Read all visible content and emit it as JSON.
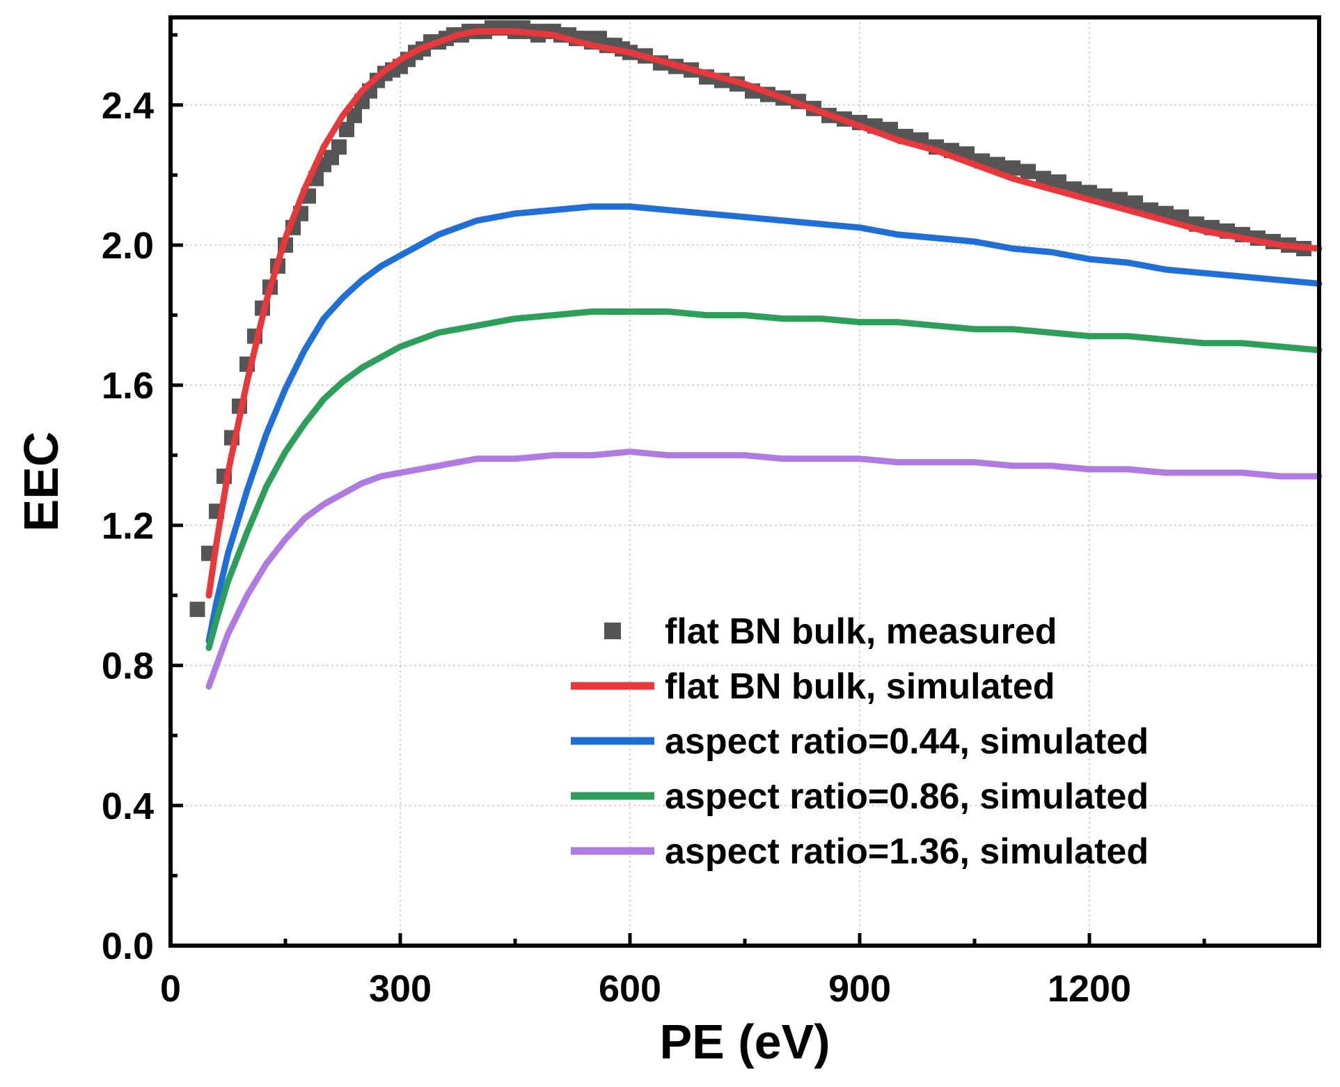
{
  "chart_data": {
    "type": "line",
    "xlabel": "PE (eV)",
    "ylabel": "EEC",
    "xlim": [
      0,
      1500
    ],
    "ylim": [
      0,
      2.65
    ],
    "xticks": [
      0,
      300,
      600,
      900,
      1200
    ],
    "xtick_labels": [
      "0",
      "300",
      "600",
      "900",
      "1200"
    ],
    "yticks": [
      0.0,
      0.4,
      0.8,
      1.2,
      1.6,
      2.0,
      2.4
    ],
    "ytick_labels": [
      "0.0",
      "0.4",
      "0.8",
      "1.2",
      "1.6",
      "2.0",
      "2.4"
    ],
    "grid": true,
    "legend_position": "bottom-right",
    "series": [
      {
        "name": "flat BN bulk, measured",
        "style": "scatter",
        "color": "#555555",
        "points": [
          [
            35,
            0.96
          ],
          [
            50,
            1.12
          ],
          [
            60,
            1.24
          ],
          [
            70,
            1.34
          ],
          [
            80,
            1.45
          ],
          [
            90,
            1.54
          ],
          [
            100,
            1.66
          ],
          [
            110,
            1.74
          ],
          [
            120,
            1.82
          ],
          [
            130,
            1.88
          ],
          [
            140,
            1.94
          ],
          [
            150,
            2.0
          ],
          [
            160,
            2.05
          ],
          [
            170,
            2.09
          ],
          [
            180,
            2.14
          ],
          [
            190,
            2.19
          ],
          [
            200,
            2.23
          ],
          [
            210,
            2.25
          ],
          [
            220,
            2.28
          ],
          [
            230,
            2.33
          ],
          [
            240,
            2.37
          ],
          [
            250,
            2.41
          ],
          [
            260,
            2.44
          ],
          [
            270,
            2.47
          ],
          [
            280,
            2.49
          ],
          [
            290,
            2.5
          ],
          [
            300,
            2.51
          ],
          [
            310,
            2.53
          ],
          [
            320,
            2.55
          ],
          [
            330,
            2.56
          ],
          [
            340,
            2.58
          ],
          [
            350,
            2.58
          ],
          [
            360,
            2.59
          ],
          [
            370,
            2.6
          ],
          [
            380,
            2.6
          ],
          [
            390,
            2.61
          ],
          [
            400,
            2.61
          ],
          [
            410,
            2.61
          ],
          [
            420,
            2.62
          ],
          [
            430,
            2.62
          ],
          [
            440,
            2.62
          ],
          [
            450,
            2.61
          ],
          [
            460,
            2.62
          ],
          [
            470,
            2.61
          ],
          [
            480,
            2.6
          ],
          [
            490,
            2.61
          ],
          [
            500,
            2.61
          ],
          [
            510,
            2.6
          ],
          [
            520,
            2.6
          ],
          [
            530,
            2.59
          ],
          [
            540,
            2.59
          ],
          [
            550,
            2.58
          ],
          [
            560,
            2.59
          ],
          [
            570,
            2.57
          ],
          [
            580,
            2.57
          ],
          [
            590,
            2.56
          ],
          [
            600,
            2.55
          ],
          [
            620,
            2.54
          ],
          [
            640,
            2.52
          ],
          [
            660,
            2.51
          ],
          [
            680,
            2.5
          ],
          [
            700,
            2.48
          ],
          [
            720,
            2.47
          ],
          [
            740,
            2.46
          ],
          [
            760,
            2.44
          ],
          [
            780,
            2.43
          ],
          [
            800,
            2.42
          ],
          [
            820,
            2.41
          ],
          [
            840,
            2.39
          ],
          [
            860,
            2.37
          ],
          [
            880,
            2.36
          ],
          [
            900,
            2.35
          ],
          [
            920,
            2.34
          ],
          [
            940,
            2.33
          ],
          [
            960,
            2.31
          ],
          [
            980,
            2.3
          ],
          [
            1000,
            2.28
          ],
          [
            1020,
            2.27
          ],
          [
            1040,
            2.26
          ],
          [
            1060,
            2.24
          ],
          [
            1080,
            2.23
          ],
          [
            1100,
            2.22
          ],
          [
            1120,
            2.21
          ],
          [
            1140,
            2.19
          ],
          [
            1160,
            2.18
          ],
          [
            1180,
            2.16
          ],
          [
            1200,
            2.15
          ],
          [
            1220,
            2.14
          ],
          [
            1240,
            2.13
          ],
          [
            1260,
            2.12
          ],
          [
            1280,
            2.1
          ],
          [
            1300,
            2.09
          ],
          [
            1320,
            2.08
          ],
          [
            1340,
            2.06
          ],
          [
            1360,
            2.05
          ],
          [
            1380,
            2.04
          ],
          [
            1400,
            2.03
          ],
          [
            1420,
            2.02
          ],
          [
            1440,
            2.01
          ],
          [
            1460,
            2.0
          ],
          [
            1480,
            1.99
          ]
        ]
      },
      {
        "name": "flat BN bulk, simulated",
        "style": "line",
        "color": "#e8383b",
        "points": [
          [
            50,
            1.0
          ],
          [
            60,
            1.15
          ],
          [
            75,
            1.35
          ],
          [
            100,
            1.61
          ],
          [
            125,
            1.84
          ],
          [
            150,
            2.02
          ],
          [
            175,
            2.16
          ],
          [
            200,
            2.28
          ],
          [
            225,
            2.37
          ],
          [
            250,
            2.44
          ],
          [
            275,
            2.49
          ],
          [
            300,
            2.53
          ],
          [
            325,
            2.56
          ],
          [
            350,
            2.58
          ],
          [
            375,
            2.6
          ],
          [
            400,
            2.61
          ],
          [
            450,
            2.61
          ],
          [
            500,
            2.6
          ],
          [
            550,
            2.57
          ],
          [
            600,
            2.55
          ],
          [
            650,
            2.52
          ],
          [
            700,
            2.49
          ],
          [
            750,
            2.46
          ],
          [
            800,
            2.42
          ],
          [
            850,
            2.38
          ],
          [
            900,
            2.34
          ],
          [
            950,
            2.3
          ],
          [
            1000,
            2.27
          ],
          [
            1050,
            2.23
          ],
          [
            1100,
            2.19
          ],
          [
            1150,
            2.16
          ],
          [
            1200,
            2.13
          ],
          [
            1250,
            2.1
          ],
          [
            1300,
            2.07
          ],
          [
            1350,
            2.04
          ],
          [
            1400,
            2.02
          ],
          [
            1450,
            2.0
          ],
          [
            1500,
            1.99
          ]
        ]
      },
      {
        "name": "aspect ratio=0.44, simulated",
        "style": "line",
        "color": "#1f6fd6",
        "points": [
          [
            50,
            0.87
          ],
          [
            60,
            0.98
          ],
          [
            75,
            1.12
          ],
          [
            100,
            1.3
          ],
          [
            125,
            1.46
          ],
          [
            150,
            1.59
          ],
          [
            175,
            1.7
          ],
          [
            200,
            1.79
          ],
          [
            225,
            1.85
          ],
          [
            250,
            1.9
          ],
          [
            275,
            1.94
          ],
          [
            300,
            1.97
          ],
          [
            325,
            2.0
          ],
          [
            350,
            2.03
          ],
          [
            375,
            2.05
          ],
          [
            400,
            2.07
          ],
          [
            450,
            2.09
          ],
          [
            500,
            2.1
          ],
          [
            550,
            2.11
          ],
          [
            600,
            2.11
          ],
          [
            650,
            2.1
          ],
          [
            700,
            2.09
          ],
          [
            750,
            2.08
          ],
          [
            800,
            2.07
          ],
          [
            850,
            2.06
          ],
          [
            900,
            2.05
          ],
          [
            950,
            2.03
          ],
          [
            1000,
            2.02
          ],
          [
            1050,
            2.01
          ],
          [
            1100,
            1.99
          ],
          [
            1150,
            1.98
          ],
          [
            1200,
            1.96
          ],
          [
            1250,
            1.95
          ],
          [
            1300,
            1.93
          ],
          [
            1350,
            1.92
          ],
          [
            1400,
            1.91
          ],
          [
            1450,
            1.9
          ],
          [
            1500,
            1.89
          ]
        ]
      },
      {
        "name": "aspect ratio=0.86, simulated",
        "style": "line",
        "color": "#2e9e5b",
        "points": [
          [
            50,
            0.85
          ],
          [
            60,
            0.93
          ],
          [
            75,
            1.04
          ],
          [
            100,
            1.18
          ],
          [
            125,
            1.31
          ],
          [
            150,
            1.41
          ],
          [
            175,
            1.49
          ],
          [
            200,
            1.56
          ],
          [
            225,
            1.61
          ],
          [
            250,
            1.65
          ],
          [
            275,
            1.68
          ],
          [
            300,
            1.71
          ],
          [
            325,
            1.73
          ],
          [
            350,
            1.75
          ],
          [
            375,
            1.76
          ],
          [
            400,
            1.77
          ],
          [
            450,
            1.79
          ],
          [
            500,
            1.8
          ],
          [
            550,
            1.81
          ],
          [
            600,
            1.81
          ],
          [
            650,
            1.81
          ],
          [
            700,
            1.8
          ],
          [
            750,
            1.8
          ],
          [
            800,
            1.79
          ],
          [
            850,
            1.79
          ],
          [
            900,
            1.78
          ],
          [
            950,
            1.78
          ],
          [
            1000,
            1.77
          ],
          [
            1050,
            1.76
          ],
          [
            1100,
            1.76
          ],
          [
            1150,
            1.75
          ],
          [
            1200,
            1.74
          ],
          [
            1250,
            1.74
          ],
          [
            1300,
            1.73
          ],
          [
            1350,
            1.72
          ],
          [
            1400,
            1.72
          ],
          [
            1450,
            1.71
          ],
          [
            1500,
            1.7
          ]
        ]
      },
      {
        "name": "aspect ratio=1.36, simulated",
        "style": "line",
        "color": "#b07be0",
        "points": [
          [
            50,
            0.74
          ],
          [
            60,
            0.8
          ],
          [
            75,
            0.89
          ],
          [
            100,
            1.0
          ],
          [
            125,
            1.09
          ],
          [
            150,
            1.16
          ],
          [
            175,
            1.22
          ],
          [
            200,
            1.26
          ],
          [
            225,
            1.29
          ],
          [
            250,
            1.32
          ],
          [
            275,
            1.34
          ],
          [
            300,
            1.35
          ],
          [
            325,
            1.36
          ],
          [
            350,
            1.37
          ],
          [
            375,
            1.38
          ],
          [
            400,
            1.39
          ],
          [
            450,
            1.39
          ],
          [
            500,
            1.4
          ],
          [
            550,
            1.4
          ],
          [
            600,
            1.41
          ],
          [
            650,
            1.4
          ],
          [
            700,
            1.4
          ],
          [
            750,
            1.4
          ],
          [
            800,
            1.39
          ],
          [
            850,
            1.39
          ],
          [
            900,
            1.39
          ],
          [
            950,
            1.38
          ],
          [
            1000,
            1.38
          ],
          [
            1050,
            1.38
          ],
          [
            1100,
            1.37
          ],
          [
            1150,
            1.37
          ],
          [
            1200,
            1.36
          ],
          [
            1250,
            1.36
          ],
          [
            1300,
            1.35
          ],
          [
            1350,
            1.35
          ],
          [
            1400,
            1.35
          ],
          [
            1450,
            1.34
          ],
          [
            1500,
            1.34
          ]
        ]
      }
    ]
  }
}
